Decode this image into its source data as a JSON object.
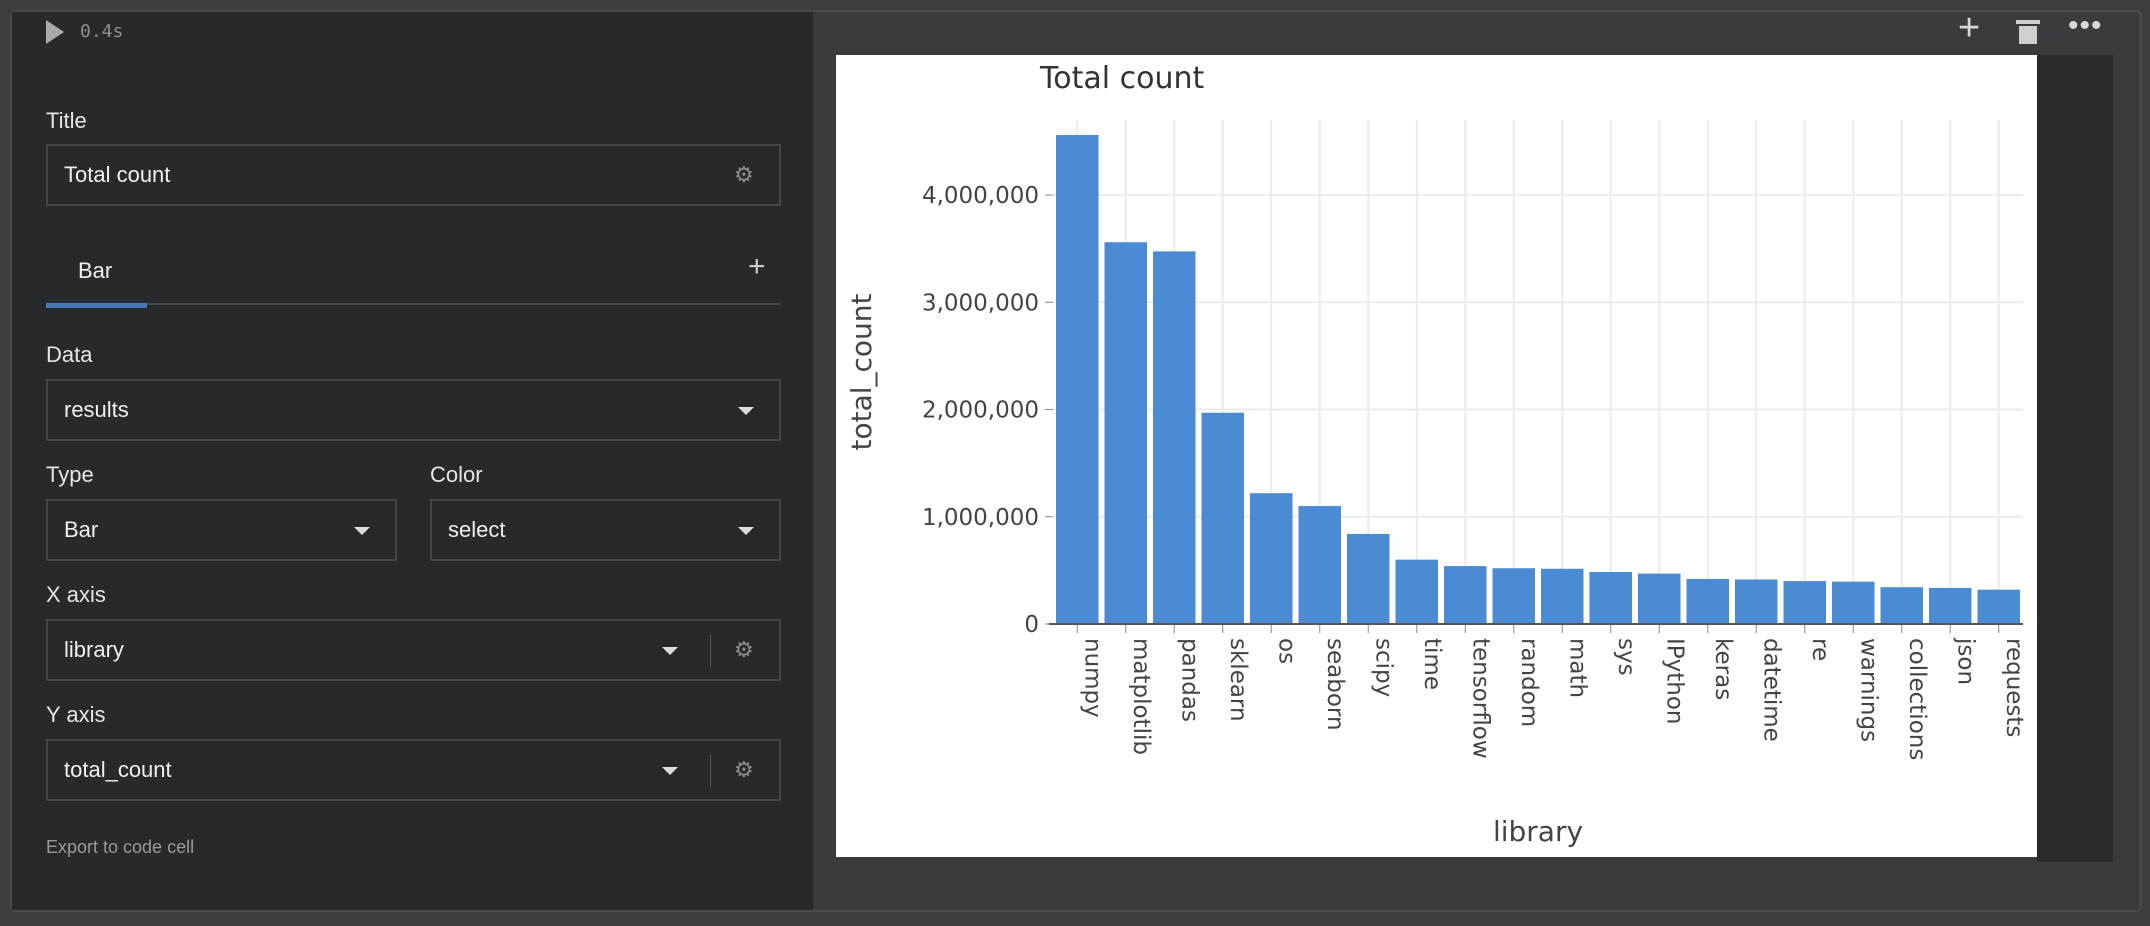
{
  "cell": {
    "run_time": "0.4s",
    "icons": [
      "play-icon",
      "plus-icon",
      "trash-icon",
      "more-icon"
    ]
  },
  "panel": {
    "title_label": "Title",
    "title_value": "Total count",
    "tab_label": "Bar",
    "data_label": "Data",
    "data_value": "results",
    "type_label": "Type",
    "type_value": "Bar",
    "color_label": "Color",
    "color_value": "select",
    "x_label": "X axis",
    "x_value": "library",
    "y_label": "Y axis",
    "y_value": "total_count",
    "export_label": "Export to code cell",
    "accent": "#4a78b5"
  },
  "chart_data": {
    "type": "bar",
    "title": "Total count",
    "xlabel": "library",
    "ylabel": "total_count",
    "categories": [
      "numpy",
      "matplotlib",
      "pandas",
      "sklearn",
      "os",
      "seaborn",
      "scipy",
      "time",
      "tensorflow",
      "random",
      "math",
      "sys",
      "IPython",
      "keras",
      "datetime",
      "re",
      "warnings",
      "collections",
      "json",
      "requests"
    ],
    "values": [
      4560000,
      3560000,
      3475000,
      1970000,
      1220000,
      1100000,
      840000,
      600000,
      540000,
      520000,
      515000,
      485000,
      470000,
      420000,
      415000,
      400000,
      395000,
      343000,
      336000,
      320000
    ],
    "yticks": [
      0,
      1000000,
      2000000,
      3000000,
      4000000
    ],
    "ytick_labels": [
      "0",
      "1,000,000",
      "2,000,000",
      "3,000,000",
      "4,000,000"
    ],
    "ylim": [
      0,
      4700000
    ],
    "grid": true,
    "bar_color": "#4a8bd4"
  }
}
